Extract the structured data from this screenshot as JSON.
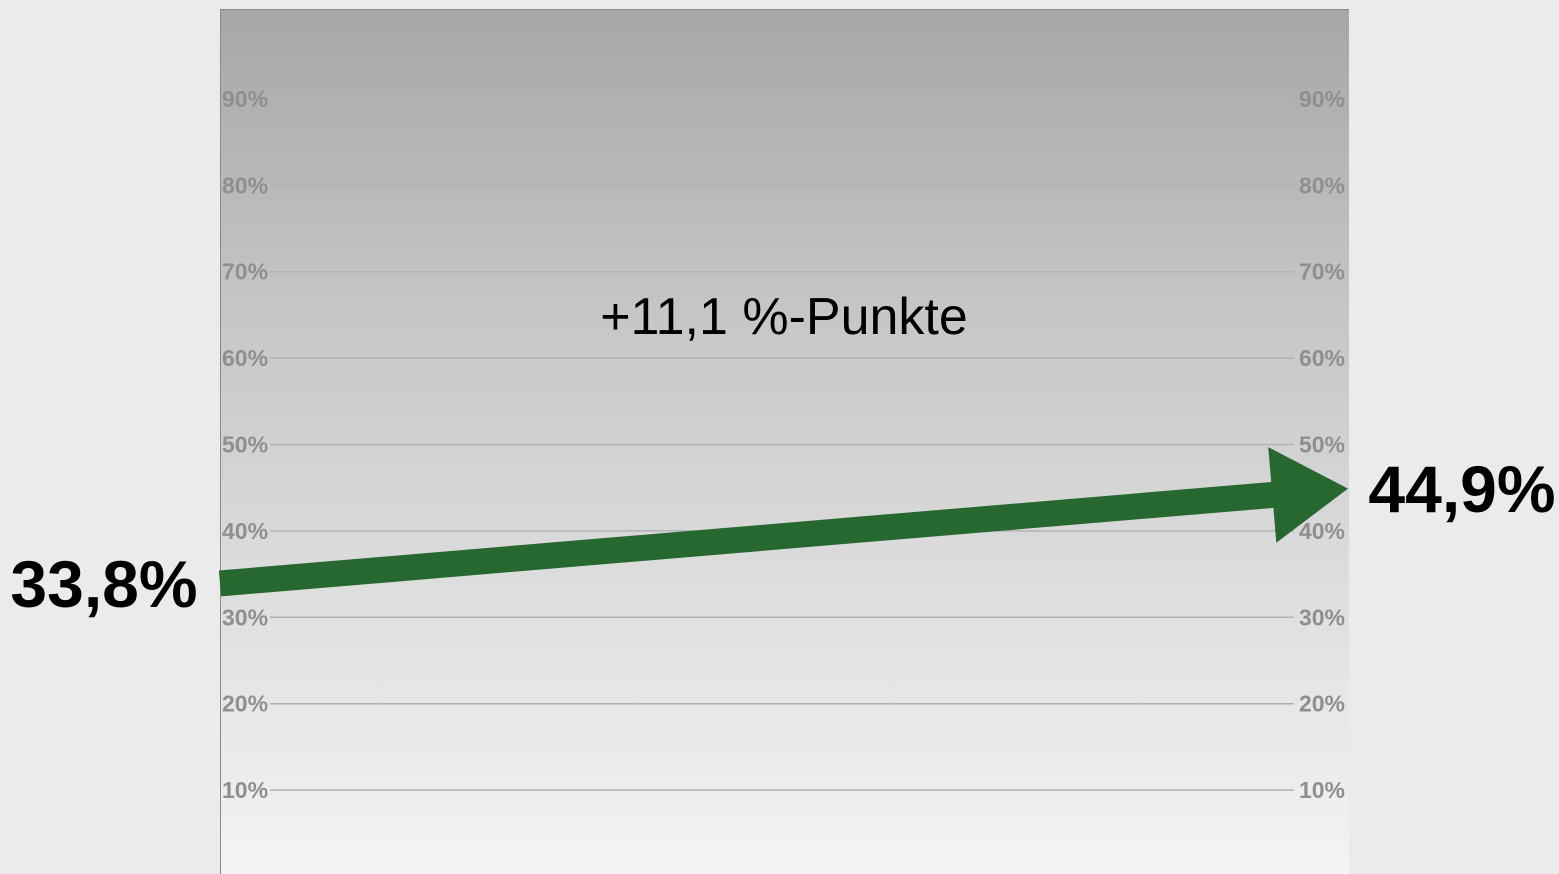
{
  "chart_data": {
    "type": "line",
    "x": [
      "start",
      "end"
    ],
    "series": [
      {
        "values": [
          33.8,
          44.9
        ]
      }
    ],
    "start_label": "33,8%",
    "end_label": "44,9%",
    "annotation": "+11,1 %-Punkte",
    "ylim": [
      0,
      100
    ],
    "yticks": [
      10,
      20,
      30,
      40,
      50,
      60,
      70,
      80,
      90
    ],
    "ytick_labels": [
      "10%",
      "20%",
      "30%",
      "40%",
      "50%",
      "60%",
      "70%",
      "80%",
      "90%"
    ],
    "grid": true,
    "arrow_color": "#276830",
    "background": "vertical gray gradient"
  }
}
